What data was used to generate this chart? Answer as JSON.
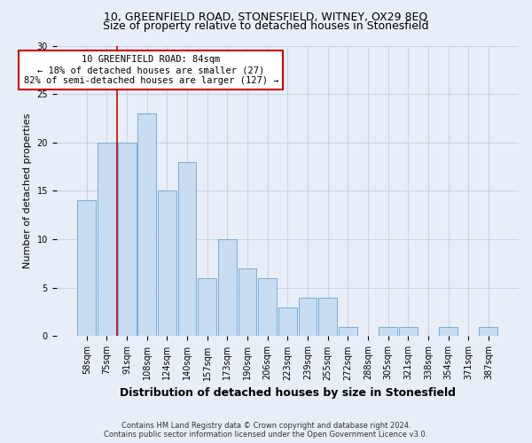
{
  "title1": "10, GREENFIELD ROAD, STONESFIELD, WITNEY, OX29 8EQ",
  "title2": "Size of property relative to detached houses in Stonesfield",
  "xlabel": "Distribution of detached houses by size in Stonesfield",
  "ylabel": "Number of detached properties",
  "categories": [
    "58sqm",
    "75sqm",
    "91sqm",
    "108sqm",
    "124sqm",
    "140sqm",
    "157sqm",
    "173sqm",
    "190sqm",
    "206sqm",
    "223sqm",
    "239sqm",
    "255sqm",
    "272sqm",
    "288sqm",
    "305sqm",
    "321sqm",
    "338sqm",
    "354sqm",
    "371sqm",
    "387sqm"
  ],
  "values": [
    14,
    20,
    20,
    23,
    15,
    18,
    6,
    10,
    7,
    6,
    3,
    4,
    4,
    1,
    0,
    1,
    1,
    0,
    1,
    0,
    1
  ],
  "bar_color": "#c8ddf2",
  "bar_edge_color": "#7aadd4",
  "annotation_box_text": "10 GREENFIELD ROAD: 84sqm\n← 18% of detached houses are smaller (27)\n82% of semi-detached houses are larger (127) →",
  "annotation_box_color": "white",
  "annotation_box_edge_color": "#cc0000",
  "vline_color": "#cc0000",
  "vline_x": 1.5,
  "ylim": [
    0,
    30
  ],
  "yticks": [
    0,
    5,
    10,
    15,
    20,
    25,
    30
  ],
  "grid_color": "#c8d4e8",
  "background_color": "#e8eef8",
  "footer1": "Contains HM Land Registry data © Crown copyright and database right 2024.",
  "footer2": "Contains public sector information licensed under the Open Government Licence v3.0.",
  "title1_fontsize": 9,
  "title2_fontsize": 9,
  "ylabel_fontsize": 8,
  "xlabel_fontsize": 9,
  "tick_fontsize": 7,
  "annotation_fontsize": 7.5,
  "footer_fontsize": 6
}
